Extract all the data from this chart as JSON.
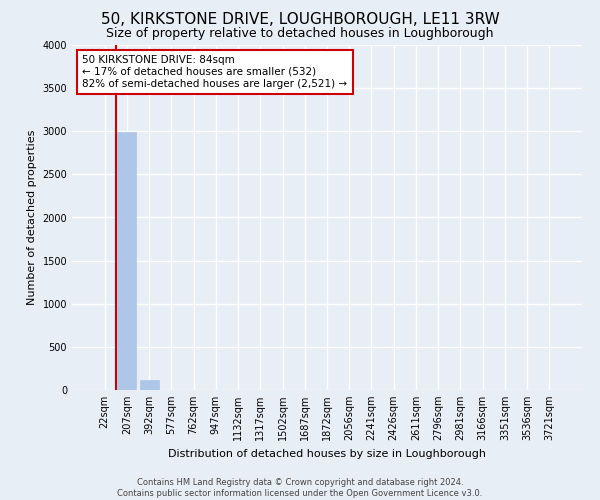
{
  "title": "50, KIRKSTONE DRIVE, LOUGHBOROUGH, LE11 3RW",
  "subtitle": "Size of property relative to detached houses in Loughborough",
  "xlabel": "Distribution of detached houses by size in Loughborough",
  "ylabel": "Number of detached properties",
  "bins": [
    "22sqm",
    "207sqm",
    "392sqm",
    "577sqm",
    "762sqm",
    "947sqm",
    "1132sqm",
    "1317sqm",
    "1502sqm",
    "1687sqm",
    "1872sqm",
    "2056sqm",
    "2241sqm",
    "2426sqm",
    "2611sqm",
    "2796sqm",
    "2981sqm",
    "3166sqm",
    "3351sqm",
    "3536sqm",
    "3721sqm"
  ],
  "values": [
    0,
    2990,
    120,
    0,
    0,
    0,
    0,
    0,
    0,
    0,
    0,
    0,
    0,
    0,
    0,
    0,
    0,
    0,
    0,
    0,
    0
  ],
  "bar_color": "#aec6e8",
  "bar_edge_color": "#aec6e8",
  "property_line_color": "#cc0000",
  "property_line_x": 0.5,
  "ylim": [
    0,
    4000
  ],
  "yticks": [
    0,
    500,
    1000,
    1500,
    2000,
    2500,
    3000,
    3500,
    4000
  ],
  "annotation_text": "50 KIRKSTONE DRIVE: 84sqm\n← 17% of detached houses are smaller (532)\n82% of semi-detached houses are larger (2,521) →",
  "annotation_box_color": "#ffffff",
  "annotation_box_edge": "#cc0000",
  "footer_line1": "Contains HM Land Registry data © Crown copyright and database right 2024.",
  "footer_line2": "Contains public sector information licensed under the Open Government Licence v3.0.",
  "background_color": "#e8eef5",
  "plot_bg_color": "#e8eef5",
  "grid_color": "#ffffff",
  "title_fontsize": 11,
  "subtitle_fontsize": 9,
  "tick_fontsize": 7,
  "ylabel_fontsize": 8,
  "xlabel_fontsize": 8,
  "annotation_fontsize": 7.5
}
